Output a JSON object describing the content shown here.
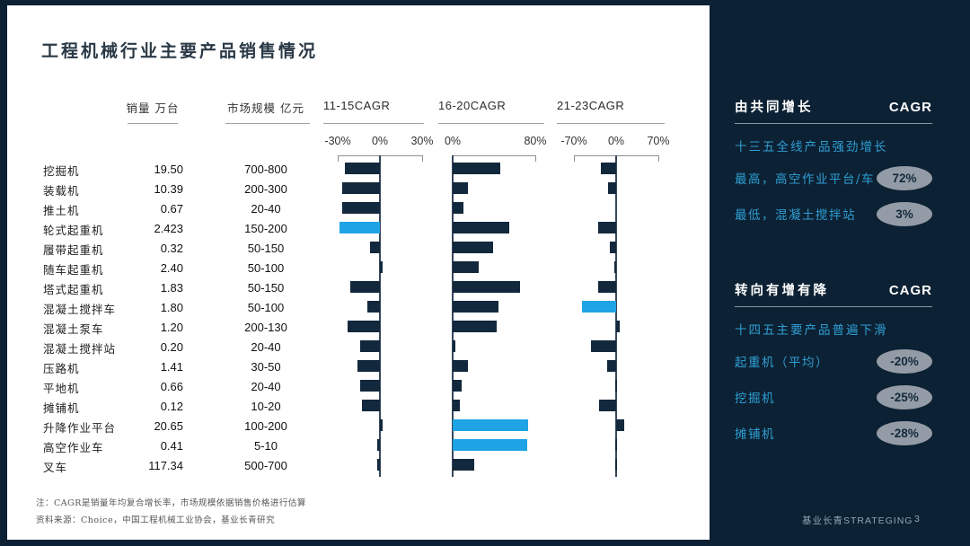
{
  "title": "工程机械行业主要产品销售情况",
  "table": {
    "col_volume": "销量 万台",
    "col_scale": "市场规模 亿元"
  },
  "chart_data": {
    "type": "bar",
    "bar_color": "#12283c",
    "highlight_color": "#1ea3e4",
    "charts": [
      {
        "id": "cagr_11_15",
        "title": "11-15CAGR",
        "axis_min": -30,
        "axis_max": 30,
        "ticks": [
          {
            "value": -30,
            "label": "-30%"
          },
          {
            "value": 0,
            "label": "0%"
          },
          {
            "value": 30,
            "label": "30%"
          }
        ]
      },
      {
        "id": "cagr_16_20",
        "title": "16-20CAGR",
        "axis_min": 0,
        "axis_max": 80,
        "ticks": [
          {
            "value": 0,
            "label": "0%"
          },
          {
            "value": 80,
            "label": "80%"
          }
        ]
      },
      {
        "id": "cagr_21_23",
        "title": "21-23CAGR",
        "axis_min": -70,
        "axis_max": 70,
        "ticks": [
          {
            "value": -70,
            "label": "-70%"
          },
          {
            "value": 0,
            "label": "0%"
          },
          {
            "value": 70,
            "label": "70%"
          }
        ]
      }
    ],
    "rows": [
      {
        "label": "挖掘机",
        "volume": "19.50",
        "scale": "700-800",
        "values": [
          -25,
          46,
          -25
        ],
        "highlight": [
          false,
          false,
          false
        ]
      },
      {
        "label": "装载机",
        "volume": "10.39",
        "scale": "200-300",
        "values": [
          -27,
          15,
          -14
        ],
        "highlight": [
          false,
          false,
          false
        ]
      },
      {
        "label": "推土机",
        "volume": "0.67",
        "scale": "20-40",
        "values": [
          -27,
          10,
          0
        ],
        "highlight": [
          false,
          false,
          false
        ]
      },
      {
        "label": "轮式起重机",
        "volume": "2.423",
        "scale": "150-200",
        "values": [
          -29,
          55,
          -30
        ],
        "highlight": [
          true,
          false,
          false
        ]
      },
      {
        "label": "履带起重机",
        "volume": "0.32",
        "scale": "50-150",
        "values": [
          -7,
          39,
          -10
        ],
        "highlight": [
          false,
          false,
          false
        ]
      },
      {
        "label": "随车起重机",
        "volume": "2.40",
        "scale": "50-100",
        "values": [
          2,
          25,
          -3
        ],
        "highlight": [
          false,
          false,
          false
        ]
      },
      {
        "label": "塔式起重机",
        "volume": "1.83",
        "scale": "50-150",
        "values": [
          -21,
          65,
          -30
        ],
        "highlight": [
          false,
          false,
          false
        ]
      },
      {
        "label": "混凝土搅拌车",
        "volume": "1.80",
        "scale": "50-100",
        "values": [
          -9,
          44,
          -57
        ],
        "highlight": [
          false,
          false,
          true
        ]
      },
      {
        "label": "混凝土泵车",
        "volume": "1.20",
        "scale": "200-130",
        "values": [
          -23,
          43,
          6
        ],
        "highlight": [
          false,
          false,
          false
        ]
      },
      {
        "label": "混凝土搅拌站",
        "volume": "0.20",
        "scale": "20-40",
        "values": [
          -14,
          3,
          -41
        ],
        "highlight": [
          false,
          false,
          false
        ]
      },
      {
        "label": "压路机",
        "volume": "1.41",
        "scale": "30-50",
        "values": [
          -16,
          15,
          -15
        ],
        "highlight": [
          false,
          false,
          false
        ]
      },
      {
        "label": "平地机",
        "volume": "0.66",
        "scale": "20-40",
        "values": [
          -14,
          9,
          -2
        ],
        "highlight": [
          false,
          false,
          false
        ]
      },
      {
        "label": "摊铺机",
        "volume": "0.12",
        "scale": "10-20",
        "values": [
          -13,
          7,
          -28
        ],
        "highlight": [
          false,
          false,
          false
        ]
      },
      {
        "label": "升降作业平台",
        "volume": "20.65",
        "scale": "100-200",
        "values": [
          2,
          73,
          14
        ],
        "highlight": [
          false,
          true,
          false
        ]
      },
      {
        "label": "高空作业车",
        "volume": "0.41",
        "scale": "5-10",
        "values": [
          -2,
          72,
          -2
        ],
        "highlight": [
          false,
          true,
          false
        ]
      },
      {
        "label": "叉车",
        "volume": "117.34",
        "scale": "500-700",
        "values": [
          -2,
          21,
          -2
        ],
        "highlight": [
          false,
          false,
          false
        ]
      }
    ]
  },
  "sidebar": {
    "sections": [
      {
        "heading": "由共同增长",
        "heading_right": "CAGR",
        "lead": "十三五全线产品强劲增长",
        "items": [
          {
            "label": "最高，高空作业平台/车",
            "badge": "72%"
          },
          {
            "label": "最低，混凝土搅拌站",
            "badge": "3%"
          }
        ]
      },
      {
        "heading": "转向有增有降",
        "heading_right": "CAGR",
        "lead": "十四五主要产品普遍下滑",
        "items": [
          {
            "label": "起重机（平均）",
            "badge": "-20%"
          },
          {
            "label": "挖掘机",
            "badge": "-25%"
          },
          {
            "label": "摊铺机",
            "badge": "-28%"
          }
        ]
      }
    ]
  },
  "footer": {
    "note1": "注：CAGR是销量年均复合增长率，市场规模依据销售价格进行估算",
    "note2": "资料来源：Choice，中国工程机械工业协会，基业长青研究",
    "brand": "基业长青STRATEGING",
    "page": "3"
  }
}
